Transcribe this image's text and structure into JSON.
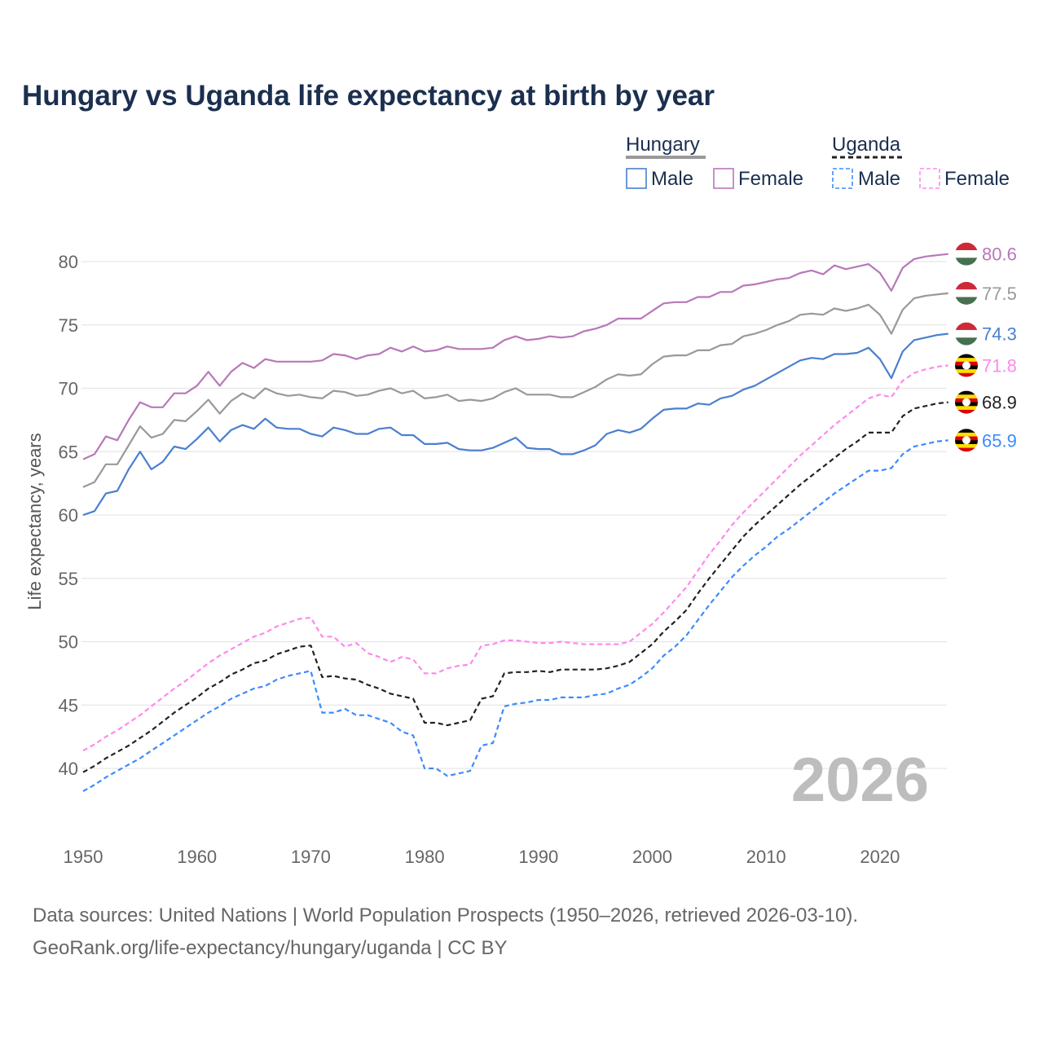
{
  "chart_data": {
    "type": "line",
    "title": "Hungary vs Uganda life expectancy at birth by year",
    "xlabel": "",
    "ylabel": "Life expectancy, years",
    "xlim": [
      1950,
      2026
    ],
    "ylim": [
      37,
      82
    ],
    "x_ticks": [
      "1950",
      "1960",
      "1970",
      "1980",
      "1990",
      "2000",
      "2010",
      "2020"
    ],
    "y_ticks": [
      "40",
      "45",
      "50",
      "55",
      "60",
      "65",
      "70",
      "75",
      "80"
    ],
    "grid": true,
    "current_year": "2026",
    "x_start": 1950,
    "legend": {
      "groups": [
        {
          "label": "Hungary",
          "items": [
            "Male",
            "Female"
          ]
        },
        {
          "label": "Uganda",
          "items": [
            "Male",
            "Female"
          ]
        }
      ],
      "placement": "top-right"
    },
    "series": [
      {
        "name": "Hungary Female",
        "country": "Hungary",
        "color": "#b878b8",
        "dashed": false,
        "end_label": "80.6",
        "values": [
          64.4,
          64.8,
          66.2,
          65.9,
          67.5,
          68.9,
          68.5,
          68.5,
          69.6,
          69.6,
          70.2,
          71.3,
          70.2,
          71.3,
          72.0,
          71.6,
          72.3,
          72.1,
          72.1,
          72.1,
          72.1,
          72.2,
          72.7,
          72.6,
          72.3,
          72.6,
          72.7,
          73.2,
          72.9,
          73.3,
          72.9,
          73.0,
          73.3,
          73.1,
          73.1,
          73.1,
          73.2,
          73.8,
          74.1,
          73.8,
          73.9,
          74.1,
          74.0,
          74.1,
          74.5,
          74.7,
          75.0,
          75.5,
          75.5,
          75.5,
          76.1,
          76.7,
          76.8,
          76.8,
          77.2,
          77.2,
          77.6,
          77.6,
          78.1,
          78.2,
          78.4,
          78.6,
          78.7,
          79.1,
          79.3,
          79.0,
          79.7,
          79.4,
          79.6,
          79.8,
          79.1,
          77.7,
          79.5,
          80.2,
          80.4,
          80.5,
          80.6
        ]
      },
      {
        "name": "Hungary Total",
        "country": "Hungary",
        "color": "#999999",
        "dashed": false,
        "end_label": "77.5",
        "values": [
          62.2,
          62.6,
          64.0,
          64.0,
          65.5,
          67.0,
          66.1,
          66.4,
          67.5,
          67.4,
          68.2,
          69.1,
          68.0,
          69.0,
          69.6,
          69.2,
          70.0,
          69.6,
          69.4,
          69.5,
          69.3,
          69.2,
          69.8,
          69.7,
          69.4,
          69.5,
          69.8,
          70.0,
          69.6,
          69.8,
          69.2,
          69.3,
          69.5,
          69.0,
          69.1,
          69.0,
          69.2,
          69.7,
          70.0,
          69.5,
          69.5,
          69.5,
          69.3,
          69.3,
          69.7,
          70.1,
          70.7,
          71.1,
          71.0,
          71.1,
          71.9,
          72.5,
          72.6,
          72.6,
          73.0,
          73.0,
          73.4,
          73.5,
          74.1,
          74.3,
          74.6,
          75.0,
          75.3,
          75.8,
          75.9,
          75.8,
          76.3,
          76.1,
          76.3,
          76.6,
          75.8,
          74.3,
          76.2,
          77.1,
          77.3,
          77.4,
          77.5
        ]
      },
      {
        "name": "Hungary Male",
        "country": "Hungary",
        "color": "#4a7fd0",
        "dashed": false,
        "end_label": "74.3",
        "values": [
          60.0,
          60.3,
          61.7,
          61.9,
          63.6,
          65.0,
          63.6,
          64.2,
          65.4,
          65.2,
          66.0,
          66.9,
          65.8,
          66.7,
          67.1,
          66.8,
          67.6,
          66.9,
          66.8,
          66.8,
          66.4,
          66.2,
          66.9,
          66.7,
          66.4,
          66.4,
          66.8,
          66.9,
          66.3,
          66.3,
          65.6,
          65.6,
          65.7,
          65.2,
          65.1,
          65.1,
          65.3,
          65.7,
          66.1,
          65.3,
          65.2,
          65.2,
          64.8,
          64.8,
          65.1,
          65.5,
          66.4,
          66.7,
          66.5,
          66.8,
          67.6,
          68.3,
          68.4,
          68.4,
          68.8,
          68.7,
          69.2,
          69.4,
          69.9,
          70.2,
          70.7,
          71.2,
          71.7,
          72.2,
          72.4,
          72.3,
          72.7,
          72.7,
          72.8,
          73.2,
          72.3,
          70.8,
          72.9,
          73.8,
          74.0,
          74.2,
          74.3
        ]
      },
      {
        "name": "Uganda Female",
        "country": "Uganda",
        "color": "#ff88ee",
        "dashed": true,
        "end_label": "71.8",
        "values": [
          41.4,
          41.9,
          42.5,
          43.0,
          43.6,
          44.2,
          44.9,
          45.6,
          46.3,
          46.9,
          47.6,
          48.3,
          48.9,
          49.4,
          49.9,
          50.4,
          50.7,
          51.2,
          51.5,
          51.8,
          51.9,
          50.4,
          50.4,
          49.6,
          49.9,
          49.1,
          48.8,
          48.4,
          48.8,
          48.6,
          47.5,
          47.5,
          47.9,
          48.1,
          48.2,
          49.7,
          49.8,
          50.1,
          50.1,
          50.0,
          49.9,
          49.9,
          50.0,
          49.9,
          49.8,
          49.8,
          49.8,
          49.8,
          50.0,
          50.7,
          51.4,
          52.3,
          53.3,
          54.3,
          55.6,
          56.9,
          58.0,
          59.2,
          60.2,
          61.1,
          62.0,
          62.9,
          63.8,
          64.7,
          65.5,
          66.3,
          67.1,
          67.8,
          68.5,
          69.2,
          69.5,
          69.3,
          70.6,
          71.2,
          71.5,
          71.7,
          71.8
        ]
      },
      {
        "name": "Uganda Total",
        "country": "Uganda",
        "color": "#222222",
        "dashed": true,
        "end_label": "68.9",
        "values": [
          39.7,
          40.2,
          40.8,
          41.3,
          41.8,
          42.4,
          43.0,
          43.7,
          44.4,
          45.0,
          45.6,
          46.3,
          46.8,
          47.4,
          47.8,
          48.3,
          48.5,
          49.0,
          49.3,
          49.6,
          49.7,
          47.2,
          47.3,
          47.1,
          47.0,
          46.6,
          46.3,
          45.9,
          45.7,
          45.5,
          43.6,
          43.6,
          43.4,
          43.6,
          43.8,
          45.5,
          45.7,
          47.5,
          47.6,
          47.6,
          47.7,
          47.6,
          47.8,
          47.8,
          47.8,
          47.8,
          47.9,
          48.1,
          48.4,
          49.1,
          49.8,
          50.8,
          51.6,
          52.5,
          53.8,
          55.0,
          56.1,
          57.2,
          58.3,
          59.2,
          60.0,
          60.8,
          61.6,
          62.4,
          63.1,
          63.8,
          64.5,
          65.2,
          65.8,
          66.5,
          66.5,
          66.5,
          67.8,
          68.4,
          68.6,
          68.8,
          68.9
        ]
      },
      {
        "name": "Uganda Male",
        "country": "Uganda",
        "color": "#3d8bfd",
        "dashed": true,
        "end_label": "65.9",
        "values": [
          38.2,
          38.7,
          39.3,
          39.8,
          40.3,
          40.8,
          41.4,
          42.0,
          42.6,
          43.2,
          43.8,
          44.4,
          44.9,
          45.5,
          45.9,
          46.3,
          46.5,
          47.0,
          47.3,
          47.5,
          47.7,
          44.4,
          44.4,
          44.7,
          44.2,
          44.2,
          43.9,
          43.6,
          42.9,
          42.6,
          40.0,
          40.0,
          39.4,
          39.6,
          39.8,
          41.8,
          42.0,
          44.9,
          45.1,
          45.2,
          45.4,
          45.4,
          45.6,
          45.6,
          45.6,
          45.8,
          45.9,
          46.3,
          46.6,
          47.2,
          47.9,
          48.9,
          49.6,
          50.5,
          51.7,
          52.9,
          54.0,
          55.1,
          56.0,
          56.8,
          57.5,
          58.3,
          58.9,
          59.6,
          60.3,
          61.0,
          61.7,
          62.3,
          62.9,
          63.5,
          63.5,
          63.7,
          64.8,
          65.4,
          65.6,
          65.8,
          65.9
        ]
      }
    ],
    "source_lines": [
      "Data sources: United Nations | World Population Prospects (1950–2026, retrieved 2026-03-10).",
      "GeoRank.org/life-expectancy/hungary/uganda | CC BY"
    ]
  }
}
